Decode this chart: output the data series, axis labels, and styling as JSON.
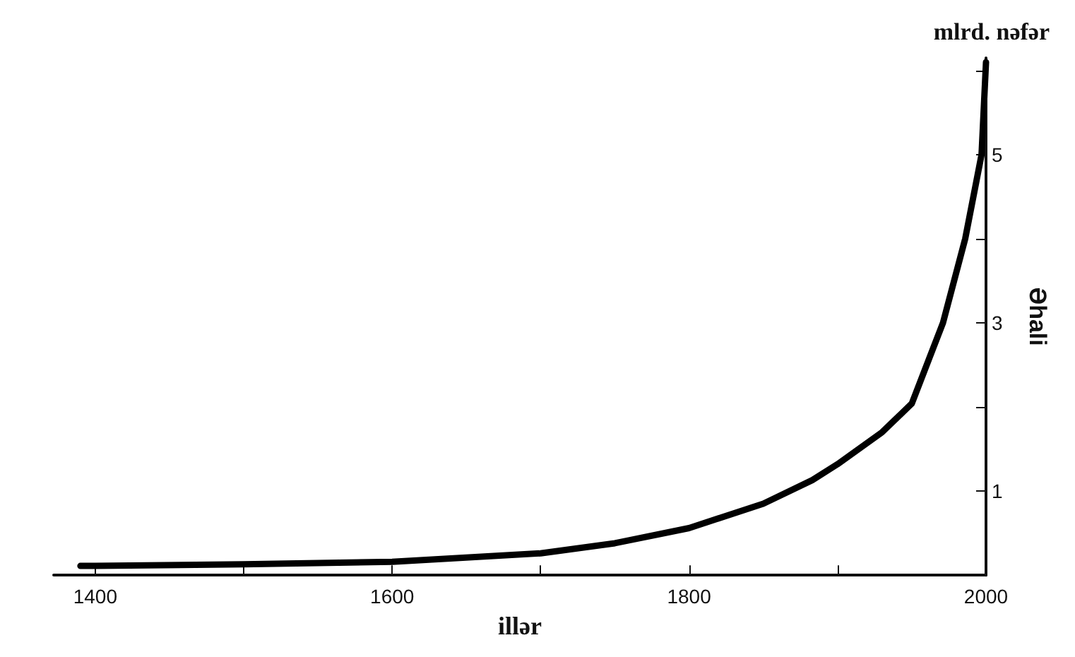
{
  "chart_data": {
    "type": "line",
    "xlabel": "illər",
    "ylabel": "Əhali",
    "annotations": [
      "mlrd. nəfər"
    ],
    "x": [
      1390,
      1400,
      1500,
      1600,
      1700,
      1750,
      1800,
      1850,
      1883,
      1900,
      1930,
      1950,
      1971,
      1986,
      1997,
      2000
    ],
    "series": [
      {
        "color": "#000000",
        "values": [
          0.11,
          0.11,
          0.13,
          0.16,
          0.26,
          0.38,
          0.56,
          0.85,
          1.13,
          1.32,
          1.7,
          2.04,
          3.0,
          4.0,
          5.0,
          6.1
        ]
      }
    ],
    "xlim": [
      1372,
      2000
    ],
    "ylim": [
      0,
      6.15
    ],
    "xticks": [
      1400,
      {
        "value": 1500,
        "label": null
      },
      1600,
      {
        "value": 1700,
        "label": null
      },
      1800,
      {
        "value": 1900,
        "label": null
      },
      2000
    ],
    "yticks": [
      1,
      {
        "value": 2,
        "label": null
      },
      3,
      {
        "value": 4,
        "label": null
      },
      5,
      {
        "value": 6,
        "label": null
      }
    ],
    "grid": false,
    "marker": "none",
    "line_style": "solid"
  }
}
